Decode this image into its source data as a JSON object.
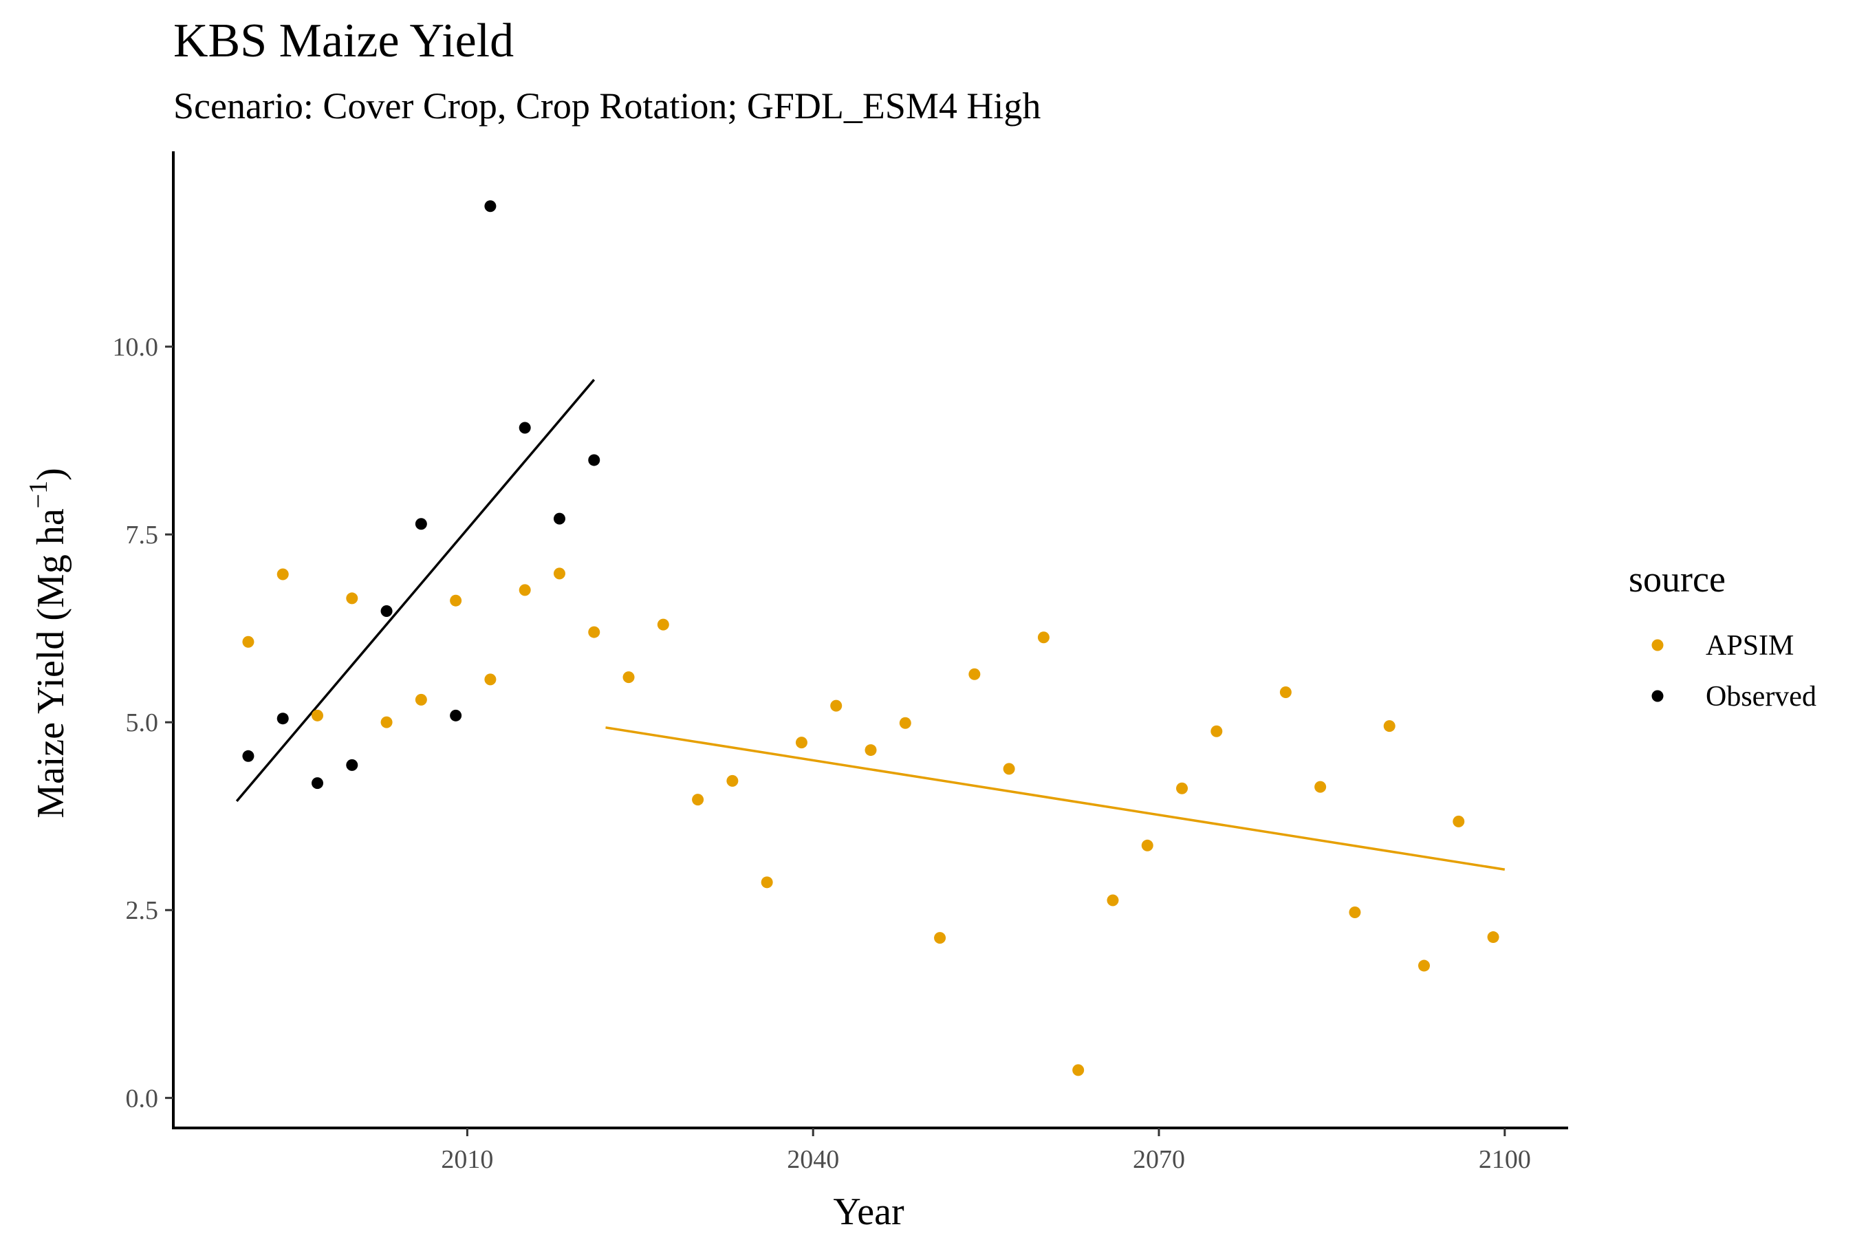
{
  "chart_data": {
    "type": "scatter",
    "title": "KBS Maize Yield",
    "subtitle": "Scenario: Cover Crop, Crop Rotation; GFDL_ESM4 High",
    "xlabel": "Year",
    "ylabel_main": "Maize Yield (Mg ha",
    "ylabel_sup": "−1",
    "ylabel_close": ")",
    "xlim": [
      1984.5,
      2105.5
    ],
    "ylim": [
      -0.4,
      12.6
    ],
    "x_ticks": [
      2010,
      2040,
      2070,
      2100
    ],
    "y_ticks": [
      0,
      2.5,
      5,
      7.5,
      10
    ],
    "y_tick_labels": [
      "0.0",
      "2.5",
      "5.0",
      "7.5",
      "10.0"
    ],
    "grid": false,
    "legend": {
      "title": "source",
      "placement": "right"
    },
    "series": [
      {
        "name": "APSIM",
        "color": "#E69F00",
        "points": [
          [
            1991,
            6.07
          ],
          [
            1994,
            6.97
          ],
          [
            1997,
            5.09
          ],
          [
            2000,
            6.65
          ],
          [
            2003,
            5.0
          ],
          [
            2006,
            5.3
          ],
          [
            2009,
            6.62
          ],
          [
            2012,
            5.57
          ],
          [
            2015,
            6.76
          ],
          [
            2018,
            6.98
          ],
          [
            2021,
            6.2
          ],
          [
            2024,
            5.6
          ],
          [
            2027,
            6.3
          ],
          [
            2030,
            3.97
          ],
          [
            2033,
            4.22
          ],
          [
            2036,
            2.87
          ],
          [
            2039,
            4.73
          ],
          [
            2042,
            5.22
          ],
          [
            2045,
            4.63
          ],
          [
            2048,
            4.99
          ],
          [
            2051,
            2.13
          ],
          [
            2054,
            5.64
          ],
          [
            2057,
            4.38
          ],
          [
            2060,
            6.13
          ],
          [
            2063,
            0.37
          ],
          [
            2066,
            2.63
          ],
          [
            2069,
            3.36
          ],
          [
            2072,
            4.12
          ],
          [
            2075,
            4.88
          ],
          [
            2081,
            5.4
          ],
          [
            2084,
            4.14
          ],
          [
            2087,
            2.47
          ],
          [
            2090,
            4.95
          ],
          [
            2093,
            1.76
          ],
          [
            2096,
            3.68
          ],
          [
            2099,
            2.14
          ]
        ],
        "trend": [
          [
            2022,
            4.93
          ],
          [
            2100,
            3.04
          ]
        ]
      },
      {
        "name": "Observed",
        "color": "#000000",
        "points": [
          [
            1991,
            4.55
          ],
          [
            1994,
            5.05
          ],
          [
            1997,
            4.19
          ],
          [
            2000,
            4.43
          ],
          [
            2003,
            6.48
          ],
          [
            2006,
            7.64
          ],
          [
            2009,
            5.09
          ],
          [
            2012,
            11.87
          ],
          [
            2015,
            8.92
          ],
          [
            2018,
            7.71
          ],
          [
            2021,
            8.49
          ]
        ],
        "trend": [
          [
            1990,
            3.95
          ],
          [
            2021,
            9.56
          ]
        ]
      }
    ]
  }
}
